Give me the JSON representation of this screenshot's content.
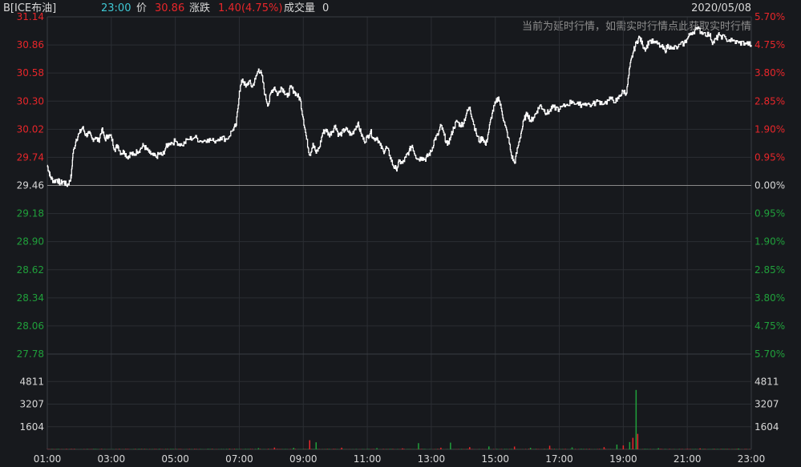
{
  "header": {
    "symbol": "B[ICE布油]",
    "time": "23:00",
    "price_label": "价",
    "price": "30.86",
    "change_label": "涨跌",
    "change": "1.40(4.75%)",
    "volume_label": "成交量",
    "volume": "0",
    "date": "2020/05/08"
  },
  "notice": "当前为延时行情，如需实时行情点此获取实时行情",
  "colors": {
    "up": "#e8262a",
    "down": "#20a03b",
    "neutral": "#d8d8d8",
    "line": "#ffffff",
    "grid": "#2b2e33",
    "cyan": "#3fc8d4"
  },
  "chart_data": {
    "type": "line",
    "base_price": 29.46,
    "price_ticks": [
      "31.14",
      "30.86",
      "30.58",
      "30.30",
      "30.02",
      "29.74",
      "29.46",
      "29.18",
      "28.90",
      "28.62",
      "28.34",
      "28.06",
      "27.78"
    ],
    "pct_ticks": [
      "5.70%",
      "4.75%",
      "3.80%",
      "2.85%",
      "1.90%",
      "0.95%",
      "0.00%",
      "0.95%",
      "1.90%",
      "2.85%",
      "3.80%",
      "4.75%",
      "5.70%"
    ],
    "volume_ticks": [
      "4811",
      "3207",
      "1604"
    ],
    "x_ticks": [
      "01:00",
      "03:00",
      "05:00",
      "07:00",
      "09:00",
      "11:00",
      "13:00",
      "15:00",
      "17:00",
      "19:00",
      "21:00",
      "23:00"
    ],
    "ylim": [
      27.78,
      31.14
    ],
    "xlim_hours": [
      1,
      23
    ],
    "price_series": [
      [
        1.0,
        29.66
      ],
      [
        1.05,
        29.6
      ],
      [
        1.1,
        29.54
      ],
      [
        1.2,
        29.5
      ],
      [
        1.3,
        29.52
      ],
      [
        1.4,
        29.48
      ],
      [
        1.5,
        29.5
      ],
      [
        1.6,
        29.46
      ],
      [
        1.7,
        29.5
      ],
      [
        1.75,
        29.56
      ],
      [
        1.8,
        29.78
      ],
      [
        1.9,
        29.92
      ],
      [
        2.0,
        29.98
      ],
      [
        2.1,
        30.04
      ],
      [
        2.2,
        29.96
      ],
      [
        2.3,
        29.98
      ],
      [
        2.4,
        29.92
      ],
      [
        2.5,
        29.94
      ],
      [
        2.6,
        29.9
      ],
      [
        2.7,
        30.02
      ],
      [
        2.8,
        29.92
      ],
      [
        2.9,
        29.96
      ],
      [
        3.0,
        29.94
      ],
      [
        3.1,
        29.82
      ],
      [
        3.2,
        29.86
      ],
      [
        3.3,
        29.78
      ],
      [
        3.4,
        29.8
      ],
      [
        3.5,
        29.74
      ],
      [
        3.6,
        29.78
      ],
      [
        3.7,
        29.76
      ],
      [
        3.8,
        29.8
      ],
      [
        3.9,
        29.82
      ],
      [
        4.0,
        29.86
      ],
      [
        4.1,
        29.82
      ],
      [
        4.2,
        29.78
      ],
      [
        4.3,
        29.76
      ],
      [
        4.4,
        29.74
      ],
      [
        4.5,
        29.78
      ],
      [
        4.6,
        29.76
      ],
      [
        4.7,
        29.84
      ],
      [
        4.8,
        29.88
      ],
      [
        5.0,
        29.9
      ],
      [
        5.2,
        29.86
      ],
      [
        5.4,
        29.92
      ],
      [
        5.6,
        29.94
      ],
      [
        5.8,
        29.9
      ],
      [
        6.0,
        29.92
      ],
      [
        6.2,
        29.9
      ],
      [
        6.4,
        29.94
      ],
      [
        6.6,
        29.92
      ],
      [
        6.8,
        30.02
      ],
      [
        6.9,
        30.06
      ],
      [
        7.0,
        30.4
      ],
      [
        7.1,
        30.52
      ],
      [
        7.2,
        30.44
      ],
      [
        7.3,
        30.5
      ],
      [
        7.4,
        30.44
      ],
      [
        7.5,
        30.52
      ],
      [
        7.6,
        30.62
      ],
      [
        7.7,
        30.56
      ],
      [
        7.8,
        30.36
      ],
      [
        7.9,
        30.26
      ],
      [
        8.0,
        30.4
      ],
      [
        8.1,
        30.44
      ],
      [
        8.2,
        30.36
      ],
      [
        8.3,
        30.44
      ],
      [
        8.4,
        30.4
      ],
      [
        8.5,
        30.34
      ],
      [
        8.6,
        30.44
      ],
      [
        8.7,
        30.4
      ],
      [
        8.8,
        30.36
      ],
      [
        8.9,
        30.32
      ],
      [
        9.0,
        30.12
      ],
      [
        9.1,
        29.92
      ],
      [
        9.2,
        29.76
      ],
      [
        9.3,
        29.88
      ],
      [
        9.4,
        29.78
      ],
      [
        9.5,
        29.84
      ],
      [
        9.6,
        29.98
      ],
      [
        9.7,
        30.02
      ],
      [
        9.8,
        29.96
      ],
      [
        9.9,
        30.0
      ],
      [
        10.0,
        30.06
      ],
      [
        10.1,
        29.96
      ],
      [
        10.2,
        29.98
      ],
      [
        10.3,
        30.02
      ],
      [
        10.4,
        30.0
      ],
      [
        10.5,
        29.96
      ],
      [
        10.6,
        30.02
      ],
      [
        10.7,
        30.08
      ],
      [
        10.8,
        29.98
      ],
      [
        10.9,
        29.9
      ],
      [
        11.0,
        29.94
      ],
      [
        11.1,
        30.0
      ],
      [
        11.2,
        29.92
      ],
      [
        11.3,
        29.94
      ],
      [
        11.4,
        29.86
      ],
      [
        11.5,
        29.8
      ],
      [
        11.6,
        29.84
      ],
      [
        11.7,
        29.76
      ],
      [
        11.8,
        29.66
      ],
      [
        11.9,
        29.62
      ],
      [
        12.0,
        29.7
      ],
      [
        12.1,
        29.68
      ],
      [
        12.2,
        29.74
      ],
      [
        12.3,
        29.8
      ],
      [
        12.4,
        29.86
      ],
      [
        12.5,
        29.76
      ],
      [
        12.6,
        29.72
      ],
      [
        12.7,
        29.74
      ],
      [
        12.8,
        29.72
      ],
      [
        12.9,
        29.76
      ],
      [
        13.0,
        29.8
      ],
      [
        13.1,
        29.92
      ],
      [
        13.2,
        29.96
      ],
      [
        13.3,
        30.06
      ],
      [
        13.4,
        29.96
      ],
      [
        13.5,
        29.86
      ],
      [
        13.6,
        29.94
      ],
      [
        13.7,
        30.04
      ],
      [
        13.8,
        30.1
      ],
      [
        13.9,
        30.06
      ],
      [
        14.0,
        30.08
      ],
      [
        14.1,
        30.18
      ],
      [
        14.2,
        30.24
      ],
      [
        14.3,
        30.1
      ],
      [
        14.4,
        29.98
      ],
      [
        14.5,
        29.9
      ],
      [
        14.6,
        29.94
      ],
      [
        14.7,
        29.86
      ],
      [
        14.8,
        30.02
      ],
      [
        14.9,
        30.18
      ],
      [
        15.0,
        30.28
      ],
      [
        15.1,
        30.34
      ],
      [
        15.2,
        30.2
      ],
      [
        15.3,
        30.06
      ],
      [
        15.4,
        29.94
      ],
      [
        15.5,
        29.76
      ],
      [
        15.6,
        29.68
      ],
      [
        15.7,
        29.84
      ],
      [
        15.8,
        29.98
      ],
      [
        15.9,
        30.12
      ],
      [
        16.0,
        30.18
      ],
      [
        16.1,
        30.1
      ],
      [
        16.2,
        30.14
      ],
      [
        16.3,
        30.2
      ],
      [
        16.4,
        30.26
      ],
      [
        16.5,
        30.22
      ],
      [
        16.6,
        30.18
      ],
      [
        16.7,
        30.2
      ],
      [
        16.8,
        30.24
      ],
      [
        17.0,
        30.22
      ],
      [
        17.2,
        30.26
      ],
      [
        17.4,
        30.3
      ],
      [
        17.6,
        30.26
      ],
      [
        17.8,
        30.28
      ],
      [
        18.0,
        30.26
      ],
      [
        18.2,
        30.3
      ],
      [
        18.4,
        30.28
      ],
      [
        18.6,
        30.32
      ],
      [
        18.8,
        30.3
      ],
      [
        18.9,
        30.36
      ],
      [
        19.0,
        30.4
      ],
      [
        19.1,
        30.38
      ],
      [
        19.2,
        30.64
      ],
      [
        19.3,
        30.78
      ],
      [
        19.4,
        30.88
      ],
      [
        19.5,
        30.94
      ],
      [
        19.6,
        30.86
      ],
      [
        19.7,
        30.82
      ],
      [
        19.8,
        30.9
      ],
      [
        20.0,
        30.88
      ],
      [
        20.2,
        30.84
      ],
      [
        20.3,
        30.8
      ],
      [
        20.4,
        30.86
      ],
      [
        20.5,
        30.82
      ],
      [
        20.7,
        30.84
      ],
      [
        20.9,
        30.88
      ],
      [
        21.0,
        30.92
      ],
      [
        21.1,
        30.98
      ],
      [
        21.3,
        31.02
      ],
      [
        21.5,
        30.98
      ],
      [
        21.7,
        30.96
      ],
      [
        21.8,
        30.88
      ],
      [
        21.9,
        30.92
      ],
      [
        22.0,
        30.96
      ],
      [
        22.2,
        30.92
      ],
      [
        22.4,
        30.9
      ],
      [
        22.6,
        30.88
      ],
      [
        22.8,
        30.88
      ],
      [
        23.0,
        30.86
      ]
    ],
    "volume_spikes": [
      [
        6.7,
        40
      ],
      [
        7.6,
        90
      ],
      [
        8.1,
        130
      ],
      [
        8.7,
        110
      ],
      [
        9.2,
        650
      ],
      [
        9.4,
        500
      ],
      [
        10.2,
        120
      ],
      [
        11.3,
        90
      ],
      [
        12.1,
        70
      ],
      [
        12.6,
        440
      ],
      [
        13.3,
        120
      ],
      [
        13.6,
        480
      ],
      [
        14.2,
        160
      ],
      [
        14.8,
        210
      ],
      [
        15.6,
        200
      ],
      [
        16.1,
        110
      ],
      [
        16.7,
        260
      ],
      [
        17.4,
        140
      ],
      [
        18.4,
        160
      ],
      [
        18.8,
        340
      ],
      [
        19.0,
        280
      ],
      [
        19.2,
        520
      ],
      [
        19.3,
        820
      ],
      [
        19.4,
        4210
      ],
      [
        19.45,
        1100
      ],
      [
        20.1,
        80
      ],
      [
        21.4,
        70
      ],
      [
        22.6,
        60
      ]
    ]
  }
}
